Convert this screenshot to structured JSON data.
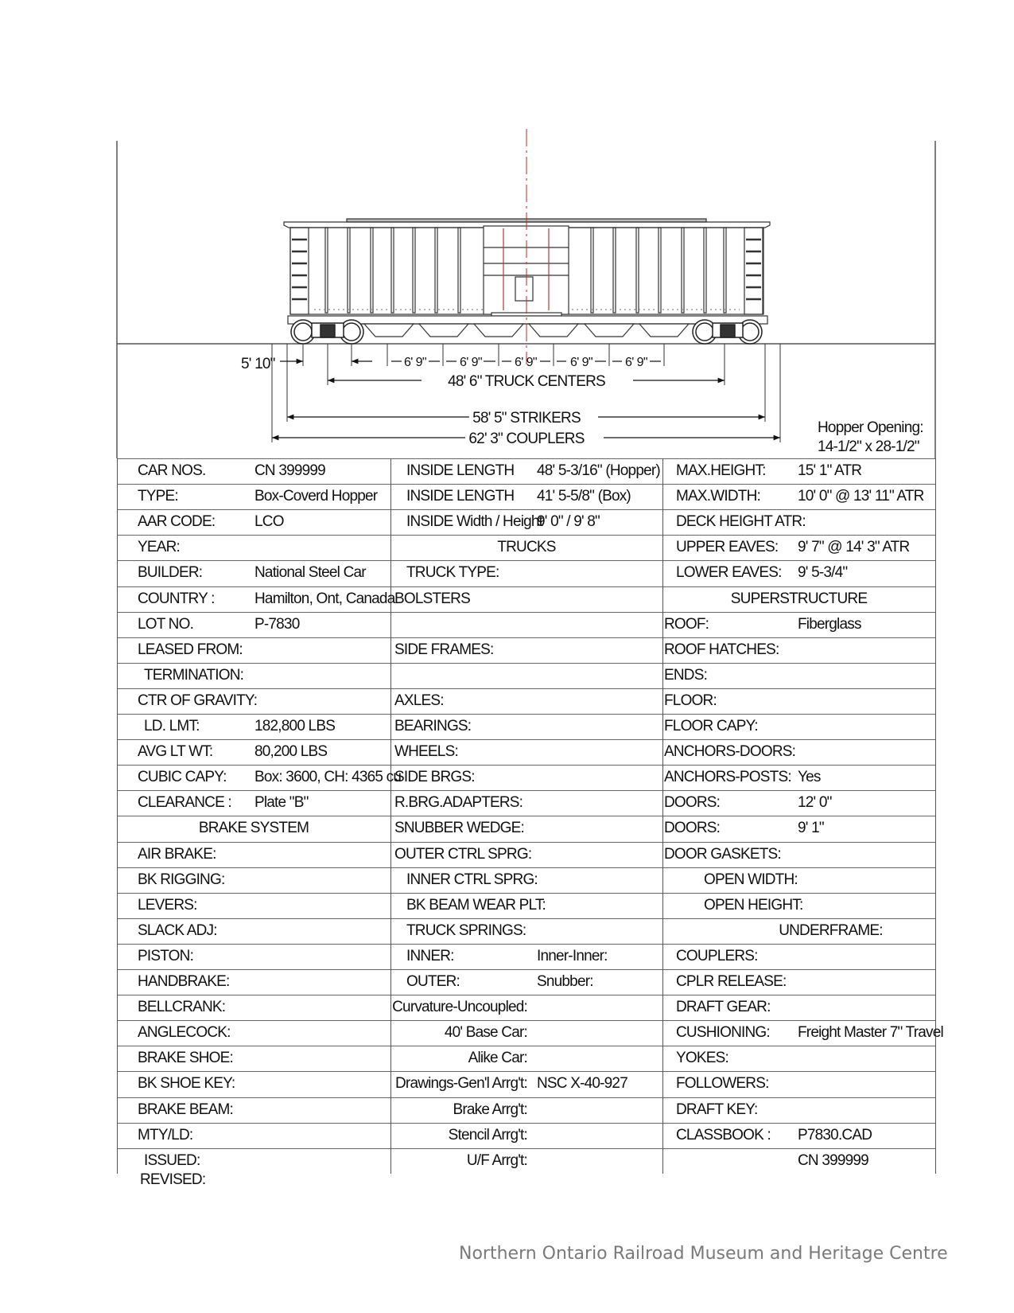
{
  "dimensions": {
    "wheelbase": "5' 10\"",
    "hopper_spacing": [
      "6' 9\"",
      "6' 9\"",
      "6' 9\"",
      "6' 9\"",
      "6' 9\""
    ],
    "truck_centers": "48' 6\" TRUCK CENTERS",
    "strikers": "58' 5\" STRIKERS",
    "couplers": "62' 3\" COUPLERS",
    "hopper_opening_label": "Hopper Opening:",
    "hopper_opening_value": "14-1/2\" x 28-1/2\""
  },
  "colors": {
    "centerline": "#cc2222",
    "grid": "#666666",
    "footer": "#7a7a7a"
  },
  "spec_table": {
    "col1": [
      {
        "label": "CAR NOS.",
        "value": "CN 399999"
      },
      {
        "label": "TYPE:",
        "value": "Box-Coverd Hopper"
      },
      {
        "label": "AAR CODE:",
        "value": "LCO"
      },
      {
        "label": "YEAR:",
        "value": ""
      },
      {
        "label": "BUILDER:",
        "value": "National Steel Car"
      },
      {
        "label": "COUNTRY :",
        "value": "Hamilton, Ont, Canada"
      },
      {
        "label": "LOT NO.",
        "value": "P-7830"
      },
      {
        "label": "LEASED FROM:",
        "value": ""
      },
      {
        "label": "TERMINATION:",
        "value": "",
        "indent": true
      },
      {
        "label": "CTR OF GRAVITY:",
        "value": ""
      },
      {
        "label": "LD. LMT:",
        "value": "182,800 LBS",
        "indent": true
      },
      {
        "label": "AVG LT WT:",
        "value": "80,200 LBS"
      },
      {
        "label": "CUBIC CAPY:",
        "value": "Box: 3600, CH: 4365 cu"
      },
      {
        "label": "CLEARANCE :",
        "value": "Plate \"B\""
      },
      {
        "header": "BRAKE SYSTEM"
      },
      {
        "label": "AIR BRAKE:",
        "value": ""
      },
      {
        "label": "BK RIGGING:",
        "value": ""
      },
      {
        "label": "LEVERS:",
        "value": ""
      },
      {
        "label": "SLACK ADJ:",
        "value": ""
      },
      {
        "label": "PISTON:",
        "value": ""
      },
      {
        "label": "HANDBRAKE:",
        "value": ""
      },
      {
        "label": "BELLCRANK:",
        "value": ""
      },
      {
        "label": "ANGLECOCK:",
        "value": ""
      },
      {
        "label": "BRAKE SHOE:",
        "value": ""
      },
      {
        "label": "BK SHOE KEY:",
        "value": ""
      },
      {
        "label": "BRAKE BEAM:",
        "value": ""
      },
      {
        "label": "MTY/LD:",
        "value": ""
      },
      {
        "label": "ISSUED:",
        "value": "",
        "indent": true
      }
    ],
    "revised_label": "REVISED:",
    "col2": [
      {
        "label": "INSIDE LENGTH",
        "value": "48' 5-3/16\"  (Hopper)",
        "indent": true
      },
      {
        "label": "INSIDE LENGTH",
        "value": "41' 5-5/8\" (Box)",
        "indent": true
      },
      {
        "label": "INSIDE Width / Height",
        "value": "9' 0\"   /   9' 8\"",
        "indent": true
      },
      {
        "header": "TRUCKS"
      },
      {
        "label": "TRUCK TYPE:",
        "value": "",
        "indent": true
      },
      {
        "label": "BOLSTERS",
        "value": ""
      },
      {
        "label": "",
        "value": ""
      },
      {
        "label": "SIDE FRAMES:",
        "value": ""
      },
      {
        "label": "",
        "value": ""
      },
      {
        "label": "AXLES:",
        "value": ""
      },
      {
        "label": "BEARINGS:",
        "value": ""
      },
      {
        "label": "WHEELS:",
        "value": ""
      },
      {
        "label": "SIDE BRGS:",
        "value": ""
      },
      {
        "label": "R.BRG.ADAPTERS:",
        "value": ""
      },
      {
        "label": "SNUBBER WEDGE:",
        "value": ""
      },
      {
        "label": "OUTER CTRL SPRG:",
        "value": ""
      },
      {
        "label": "INNER CTRL SPRG:",
        "value": "",
        "indent": true
      },
      {
        "label": "BK BEAM WEAR PLT:",
        "value": "",
        "indent": true
      },
      {
        "label": "TRUCK SPRINGS:",
        "value": "",
        "indent": true
      },
      {
        "label": "INNER:",
        "value": "Inner-Inner:",
        "indent": true
      },
      {
        "label": "OUTER:",
        "value": "Snubber:",
        "indent": true
      },
      {
        "label": "Curvature-Uncoupled:",
        "value": "",
        "right": true
      },
      {
        "label": "40' Base Car:",
        "value": "",
        "right": true
      },
      {
        "label": "Alike Car:",
        "value": "",
        "right": true
      },
      {
        "label": "Drawings-Gen'l Arrg't:",
        "value": "NSC  X-40-927",
        "right": true
      },
      {
        "label": "Brake Arrg't:",
        "value": "",
        "right": true
      },
      {
        "label": "Stencil Arrg't:",
        "value": "",
        "right": true
      },
      {
        "label": "U/F Arrg't:",
        "value": "",
        "right": true
      }
    ],
    "col3": [
      {
        "label": "MAX.HEIGHT:",
        "value": "15' 1\" ATR",
        "indent": true
      },
      {
        "label": "MAX.WIDTH:",
        "value": "10' 0\" @ 13' 11\" ATR",
        "indent": true
      },
      {
        "label": "DECK HEIGHT ATR:",
        "value": "",
        "indent": true
      },
      {
        "label": "UPPER EAVES:",
        "value": "9' 7\" @ 14' 3\" ATR",
        "indent": true
      },
      {
        "label": "LOWER EAVES:",
        "value": "9' 5-3/4\"",
        "indent": true
      },
      {
        "header": "SUPERSTRUCTURE"
      },
      {
        "label": "ROOF:",
        "value": "Fiberglass"
      },
      {
        "label": "ROOF HATCHES:",
        "value": ""
      },
      {
        "label": "ENDS:",
        "value": ""
      },
      {
        "label": "FLOOR:",
        "value": ""
      },
      {
        "label": "FLOOR CAPY:",
        "value": ""
      },
      {
        "label": "ANCHORS-DOORS:",
        "value": ""
      },
      {
        "label": "ANCHORS-POSTS:",
        "value": "Yes"
      },
      {
        "label": "DOORS:",
        "value": "12' 0\""
      },
      {
        "label": "DOORS:",
        "value": "9' 1\""
      },
      {
        "label": "DOOR GASKETS:",
        "value": ""
      },
      {
        "label": "OPEN WIDTH:",
        "value": "",
        "indent2": true
      },
      {
        "label": "OPEN HEIGHT:",
        "value": "",
        "indent2": true
      },
      {
        "header": "UNDERFRAME:",
        "offset": true
      },
      {
        "label": "COUPLERS:",
        "value": "",
        "indent": true
      },
      {
        "label": "CPLR RELEASE:",
        "value": "",
        "indent": true
      },
      {
        "label": "DRAFT GEAR:",
        "value": "",
        "indent": true
      },
      {
        "label": "CUSHIONING:",
        "value": "Freight Master 7\" Travel",
        "indent": true
      },
      {
        "label": "YOKES:",
        "value": "",
        "indent": true
      },
      {
        "label": "FOLLOWERS:",
        "value": "",
        "indent": true
      },
      {
        "label": "DRAFT KEY:",
        "value": "",
        "indent": true
      },
      {
        "label": "CLASSBOOK :",
        "value": "P7830.CAD",
        "indent": true
      },
      {
        "label": "",
        "value": "CN 399999",
        "indent": true
      }
    ]
  },
  "footer": "Northern Ontario Railroad Museum and Heritage Centre"
}
